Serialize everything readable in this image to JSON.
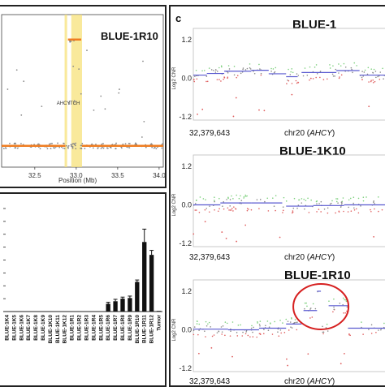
{
  "figure": {
    "panel_c_letter": "c",
    "top_left_title": "BLUE-1R10",
    "top_left_xlabel": "Position (Mb)",
    "top_left_xticks": [
      "32.5",
      "33.0",
      "33.5",
      "34.0"
    ],
    "top_left_gene_labels": [
      "AHCY",
      "ITCH"
    ],
    "bottom_left_categories": [
      "BLUE-1K4",
      "BLUE-1K5",
      "BLUE-1K6",
      "BLUE-1K7",
      "BLUE-1K8",
      "BLUE-1K9",
      "BLUE-1K10",
      "BLUE-1K11",
      "BLUE-1K12",
      "BLUE-1R1",
      "BLUE-1R2",
      "BLUE-1R3",
      "BLUE-1R4",
      "BLUE-1R5",
      "BLUE-1R6",
      "BLUE-1R7",
      "BLUE-1R8",
      "BLUE-1R9",
      "BLUE-1R10",
      "BLUE-1R11",
      "BLUE-1R12",
      "Tumor"
    ],
    "right_panels": [
      {
        "title": "BLUE-1",
        "ylabel": "Log2 CNR",
        "yticks": [
          "1.2",
          "0.0",
          "-1.2"
        ],
        "xstart": "32,379,643",
        "xgene": "chr20 (",
        "xgene_italic": "AHCY",
        "xgene_close": ")"
      },
      {
        "title": "BLUE-1K10",
        "ylabel": "Log2 CNR",
        "yticks": [
          "1.2",
          "0.0",
          "-1.2"
        ],
        "xstart": "32,379,643",
        "xgene": "chr20 (",
        "xgene_italic": "AHCY",
        "xgene_close": ")"
      },
      {
        "title": "BLUE-1R10",
        "ylabel": "Log2 CNR",
        "yticks": [
          "1.2",
          "0.0",
          "-1.2"
        ],
        "xstart": "32,379,643",
        "xgene": "chr20 (",
        "xgene_italic": "AHCY",
        "xgene_close": ")"
      }
    ],
    "colors": {
      "segment_orange": "#ef7d22",
      "highlight_yellow": "#f7e27a",
      "segment_blue": "#5a5ad0",
      "point_green": "#7ed07e",
      "point_red": "#e06060",
      "point_gray": "#8a8a8a",
      "bar_black": "#111111",
      "circle_red": "#d62020"
    }
  },
  "chart_data": [
    {
      "type": "scatter",
      "title": "BLUE-1R10",
      "xlabel": "Position (Mb)",
      "ylabel": "",
      "xlim": [
        32.1,
        34.05
      ],
      "ylim": [
        -0.3,
        1.6
      ],
      "segments": [
        {
          "x0": 32.1,
          "x1": 32.87,
          "y": 0.0
        },
        {
          "x0": 32.9,
          "x1": 33.06,
          "y": 1.5
        },
        {
          "x0": 33.07,
          "x1": 34.05,
          "y": 0.0
        }
      ],
      "highlights": [
        {
          "label": "AHCY",
          "x0": 32.86,
          "x1": 32.89
        },
        {
          "label": "ITCH",
          "x0": 32.94,
          "x1": 33.07
        }
      ],
      "grid": false
    },
    {
      "type": "bar",
      "categories": [
        "BLUE-1K4",
        "BLUE-1K5",
        "BLUE-1K6",
        "BLUE-1K7",
        "BLUE-1K8",
        "BLUE-1K9",
        "BLUE-1K10",
        "BLUE-1K11",
        "BLUE-1K12",
        "BLUE-1R1",
        "BLUE-1R2",
        "BLUE-1R3",
        "BLUE-1R4",
        "BLUE-1R5",
        "BLUE-1R6",
        "BLUE-1R7",
        "BLUE-1R8",
        "BLUE-1R9",
        "BLUE-1R10",
        "BLUE-1R11",
        "BLUE-1R12",
        "Tumor"
      ],
      "values": [
        0,
        0,
        0,
        0,
        0,
        0,
        0,
        0,
        0,
        0,
        0,
        0,
        0,
        0,
        0.6,
        0.8,
        1.0,
        1.05,
        2.3,
        5.4,
        4.4,
        0.05
      ],
      "errors": [
        0,
        0,
        0,
        0,
        0,
        0,
        0,
        0,
        0,
        0,
        0,
        0,
        0,
        0,
        0.12,
        0.15,
        0.12,
        0.15,
        0.15,
        1.0,
        0.35,
        0
      ],
      "ylim": [
        0,
        8
      ],
      "grid": false
    },
    {
      "type": "scatter",
      "title": "BLUE-1",
      "ylabel": "Log2 CNR",
      "ylim": [
        -1.3,
        1.3
      ],
      "segments": [
        {
          "x0": 0.0,
          "x1": 0.07,
          "y": 0.1
        },
        {
          "x0": 0.07,
          "x1": 0.16,
          "y": 0.15
        },
        {
          "x0": 0.16,
          "x1": 0.3,
          "y": 0.22
        },
        {
          "x0": 0.3,
          "x1": 0.39,
          "y": 0.25
        },
        {
          "x0": 0.39,
          "x1": 0.48,
          "y": 0.14
        },
        {
          "x0": 0.48,
          "x1": 0.54,
          "y": 0.05
        },
        {
          "x0": 0.56,
          "x1": 0.66,
          "y": 0.18
        },
        {
          "x0": 0.66,
          "x1": 0.74,
          "y": 0.18
        },
        {
          "x0": 0.74,
          "x1": 0.86,
          "y": 0.24
        },
        {
          "x0": 0.86,
          "x1": 1.0,
          "y": 0.1
        }
      ]
    },
    {
      "type": "scatter",
      "title": "BLUE-1K10",
      "ylabel": "Log2 CNR",
      "ylim": [
        -1.3,
        1.3
      ],
      "segments": [
        {
          "x0": 0.0,
          "x1": 0.14,
          "y": 0.0
        },
        {
          "x0": 0.14,
          "x1": 0.3,
          "y": 0.06
        },
        {
          "x0": 0.3,
          "x1": 0.46,
          "y": 0.06
        },
        {
          "x0": 0.48,
          "x1": 0.62,
          "y": -0.04
        },
        {
          "x0": 0.62,
          "x1": 0.78,
          "y": -0.02
        },
        {
          "x0": 0.78,
          "x1": 1.0,
          "y": 0.0
        }
      ]
    },
    {
      "type": "scatter",
      "title": "BLUE-1R10",
      "ylabel": "Log2 CNR",
      "ylim": [
        -1.3,
        1.3
      ],
      "segments": [
        {
          "x0": 0.0,
          "x1": 0.18,
          "y": 0.02
        },
        {
          "x0": 0.18,
          "x1": 0.34,
          "y": 0.0
        },
        {
          "x0": 0.34,
          "x1": 0.48,
          "y": 0.05
        },
        {
          "x0": 0.48,
          "x1": 0.56,
          "y": 0.18
        },
        {
          "x0": 0.57,
          "x1": 0.64,
          "y": 0.6
        },
        {
          "x0": 0.64,
          "x1": 0.66,
          "y": 1.2
        },
        {
          "x0": 0.7,
          "x1": 0.8,
          "y": 0.75
        },
        {
          "x0": 0.8,
          "x1": 1.0,
          "y": 0.05
        }
      ]
    }
  ]
}
